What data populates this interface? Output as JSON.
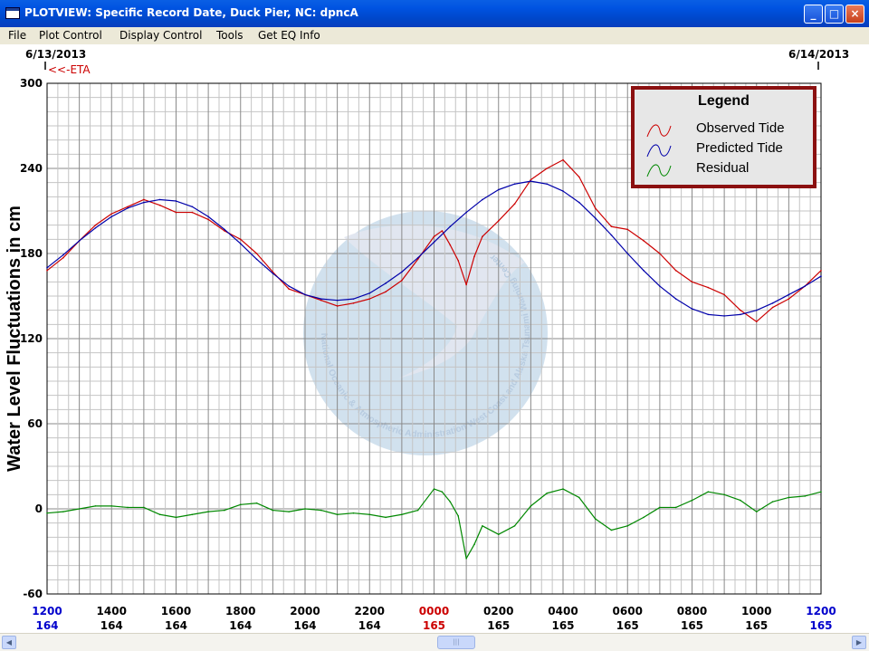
{
  "window": {
    "title": "PLOTVIEW: Specific Record Date, Duck Pier, NC: dpncA",
    "minimize_label": "_",
    "maximize_label": "□",
    "close_label": "×"
  },
  "menu": {
    "items": [
      "File",
      "Plot Control",
      "Display Control",
      "Tools",
      "Get EQ Info"
    ]
  },
  "header": {
    "start_date": "6/13/2013",
    "end_date": "6/14/2013",
    "eta_marker": "<<-ETA"
  },
  "watermark": {
    "text": "National Oceanic & Atmospheric Administration  West Coast and Alaska Tsunami Warning Center"
  },
  "legend": {
    "title": "Legend",
    "entries": [
      {
        "label": "Observed Tide",
        "color": "#cc0000"
      },
      {
        "label": "Predicted Tide",
        "color": "#0000aa"
      },
      {
        "label": "Residual",
        "color": "#008800"
      }
    ]
  },
  "chart_data": {
    "type": "line",
    "ylabel": "Water Level Fluctuations in cm",
    "ylim": [
      -60,
      300
    ],
    "yticks": [
      300,
      240,
      180,
      120,
      60,
      0,
      -60
    ],
    "xlim": [
      0,
      24
    ],
    "x_unit": "hours after 1200 on day 164",
    "xticks": [
      {
        "x": 0,
        "time": "1200",
        "day": "164",
        "time_color": "#0000cc",
        "day_color": "#0000cc"
      },
      {
        "x": 2,
        "time": "1400",
        "day": "164",
        "time_color": "#000000",
        "day_color": "#000000"
      },
      {
        "x": 4,
        "time": "1600",
        "day": "164",
        "time_color": "#000000",
        "day_color": "#000000"
      },
      {
        "x": 6,
        "time": "1800",
        "day": "164",
        "time_color": "#000000",
        "day_color": "#000000"
      },
      {
        "x": 8,
        "time": "2000",
        "day": "164",
        "time_color": "#000000",
        "day_color": "#000000"
      },
      {
        "x": 10,
        "time": "2200",
        "day": "164",
        "time_color": "#000000",
        "day_color": "#000000"
      },
      {
        "x": 12,
        "time": "0000",
        "day": "165",
        "time_color": "#cc0000",
        "day_color": "#cc0000"
      },
      {
        "x": 14,
        "time": "0200",
        "day": "165",
        "time_color": "#000000",
        "day_color": "#000000"
      },
      {
        "x": 16,
        "time": "0400",
        "day": "165",
        "time_color": "#000000",
        "day_color": "#000000"
      },
      {
        "x": 18,
        "time": "0600",
        "day": "165",
        "time_color": "#000000",
        "day_color": "#000000"
      },
      {
        "x": 20,
        "time": "0800",
        "day": "165",
        "time_color": "#000000",
        "day_color": "#000000"
      },
      {
        "x": 22,
        "time": "1000",
        "day": "165",
        "time_color": "#000000",
        "day_color": "#000000"
      },
      {
        "x": 24,
        "time": "1200",
        "day": "165",
        "time_color": "#0000cc",
        "day_color": "#0000cc"
      }
    ],
    "grid": true,
    "legend_position": "top-right",
    "series": [
      {
        "name": "Observed Tide",
        "color": "#cc0000",
        "x": [
          0,
          0.5,
          1,
          1.5,
          2,
          2.5,
          3,
          3.5,
          4,
          4.5,
          5,
          5.5,
          6,
          6.5,
          7,
          7.5,
          8,
          8.5,
          9,
          9.5,
          10,
          10.5,
          11,
          11.5,
          12,
          12.25,
          12.5,
          12.75,
          13,
          13.25,
          13.5,
          14,
          14.5,
          15,
          15.5,
          16,
          16.5,
          17,
          17.5,
          18,
          18.5,
          19,
          19.5,
          20,
          20.5,
          21,
          21.5,
          22,
          22.5,
          23,
          23.5,
          24
        ],
        "values": [
          168,
          177,
          189,
          200,
          208,
          213,
          218,
          214,
          209,
          209,
          204,
          196,
          190,
          180,
          167,
          155,
          151,
          147,
          143,
          145,
          148,
          153,
          161,
          176,
          192,
          196,
          186,
          175,
          158,
          178,
          192,
          203,
          215,
          232,
          240,
          246,
          234,
          212,
          199,
          197,
          189,
          180,
          168,
          160,
          156,
          151,
          140,
          132,
          142,
          148,
          157,
          168
        ]
      },
      {
        "name": "Predicted Tide",
        "color": "#0000aa",
        "x": [
          0,
          0.5,
          1,
          1.5,
          2,
          2.5,
          3,
          3.5,
          4,
          4.5,
          5,
          5.5,
          6,
          6.5,
          7,
          7.5,
          8,
          8.5,
          9,
          9.5,
          10,
          10.5,
          11,
          11.5,
          12,
          12.5,
          13,
          13.5,
          14,
          14.5,
          15,
          15.5,
          16,
          16.5,
          17,
          17.5,
          18,
          18.5,
          19,
          19.5,
          20,
          20.5,
          21,
          21.5,
          22,
          22.5,
          23,
          23.5,
          24
        ],
        "values": [
          170,
          179,
          189,
          198,
          206,
          212,
          216,
          218,
          217,
          213,
          206,
          197,
          187,
          176,
          166,
          157,
          151,
          148,
          147,
          148,
          152,
          159,
          167,
          177,
          188,
          199,
          209,
          218,
          225,
          229,
          231,
          229,
          224,
          216,
          205,
          193,
          180,
          168,
          157,
          148,
          141,
          137,
          136,
          137,
          140,
          145,
          151,
          157,
          164
        ]
      },
      {
        "name": "Residual",
        "color": "#008800",
        "x": [
          0,
          0.5,
          1,
          1.5,
          2,
          2.5,
          3,
          3.5,
          4,
          4.5,
          5,
          5.5,
          6,
          6.5,
          7,
          7.5,
          8,
          8.5,
          9,
          9.5,
          10,
          10.5,
          11,
          11.5,
          12,
          12.25,
          12.5,
          12.75,
          13,
          13.25,
          13.5,
          14,
          14.5,
          15,
          15.5,
          16,
          16.5,
          17,
          17.5,
          18,
          18.5,
          19,
          19.5,
          20,
          20.5,
          21,
          21.5,
          22,
          22.5,
          23,
          23.5,
          24
        ],
        "values": [
          -3,
          -2,
          0,
          2,
          2,
          1,
          1,
          -4,
          -6,
          -4,
          -2,
          -1,
          3,
          4,
          -1,
          -2,
          0,
          -1,
          -4,
          -3,
          -4,
          -6,
          -4,
          -1,
          14,
          12,
          5,
          -5,
          -35,
          -25,
          -12,
          -18,
          -12,
          2,
          11,
          14,
          8,
          -7,
          -15,
          -12,
          -6,
          1,
          1,
          6,
          12,
          10,
          6,
          -2,
          5,
          8,
          9,
          12
        ]
      }
    ]
  }
}
